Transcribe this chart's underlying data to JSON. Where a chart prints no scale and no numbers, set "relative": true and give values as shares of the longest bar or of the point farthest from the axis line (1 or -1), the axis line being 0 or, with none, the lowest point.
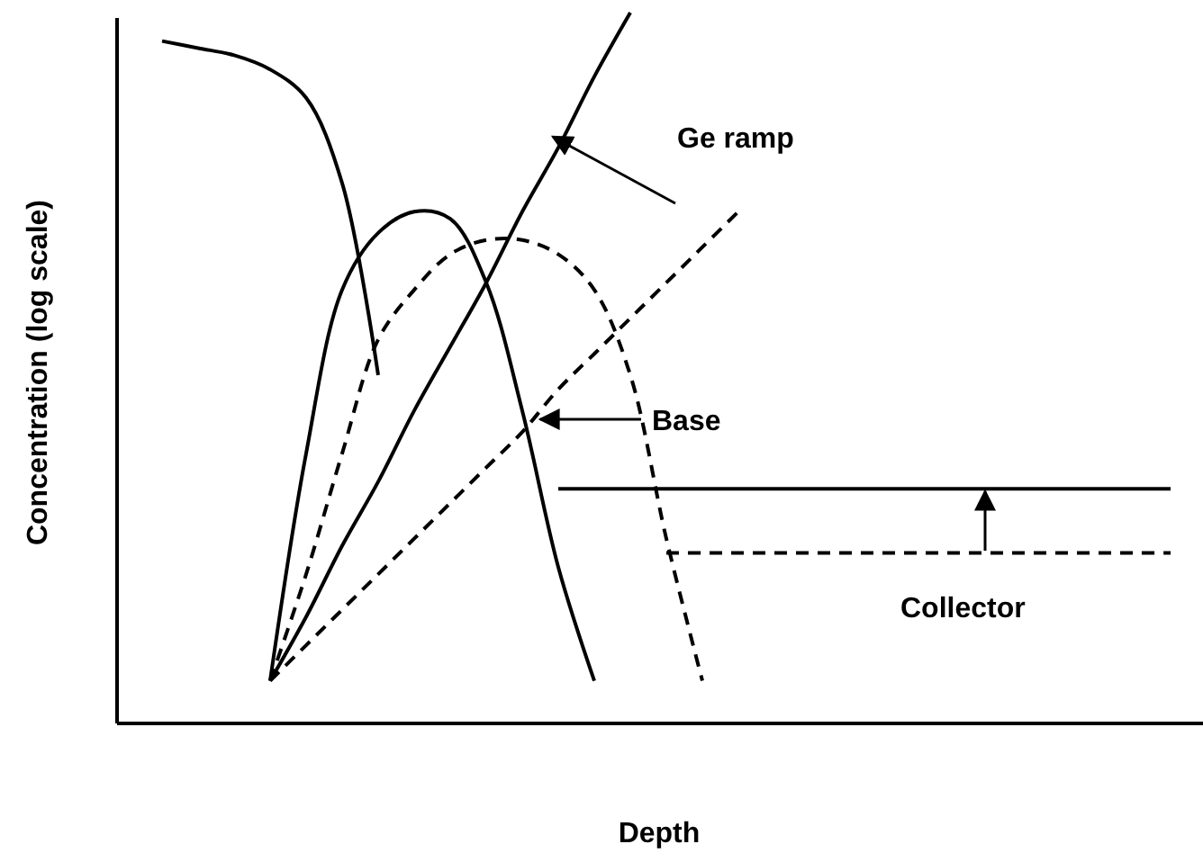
{
  "chart_data": {
    "type": "line",
    "relative": true,
    "xlabel": "Depth",
    "ylabel": "Concentration (log scale)",
    "marker": "none",
    "categories": [
      null,
      null,
      null,
      null,
      null,
      null,
      null,
      null,
      null,
      null,
      null,
      null,
      null,
      null,
      null,
      null,
      null,
      null,
      null,
      null,
      null,
      null,
      null,
      null,
      null,
      null,
      null,
      null,
      null
    ],
    "series": [
      {
        "color": "#000000",
        "line_style": "solid",
        "values": [
          0.96,
          0.95,
          0.94,
          0.92,
          0.88,
          0.76,
          0.49,
          null,
          null,
          null,
          null,
          null,
          null,
          null,
          null,
          null,
          null,
          null,
          null,
          null,
          null,
          null,
          null,
          null,
          null,
          null,
          null,
          null,
          null
        ]
      },
      {
        "color": "#000000",
        "line_style": "solid",
        "values": [
          null,
          null,
          null,
          0.06,
          0.38,
          0.61,
          0.69,
          0.72,
          0.71,
          0.62,
          0.44,
          0.22,
          0.06,
          null,
          null,
          null,
          null,
          null,
          null,
          null,
          null,
          null,
          null,
          null,
          null,
          null,
          null,
          null,
          null
        ]
      },
      {
        "color": "#000000",
        "line_style": "dashed",
        "values": [
          null,
          null,
          null,
          0.06,
          0.21,
          0.38,
          0.54,
          0.61,
          0.66,
          0.68,
          0.68,
          0.66,
          0.61,
          0.49,
          0.26,
          0.06,
          null,
          null,
          null,
          null,
          null,
          null,
          null,
          null,
          null,
          null,
          null,
          null,
          null
        ]
      },
      {
        "color": "#000000",
        "line_style": "solid",
        "values": [
          null,
          null,
          null,
          0.06,
          0.15,
          0.25,
          0.34,
          0.44,
          0.53,
          0.62,
          0.72,
          0.81,
          0.91,
          1.0,
          null,
          null,
          null,
          null,
          null,
          null,
          null,
          null,
          null,
          null,
          null,
          null,
          null,
          null,
          null
        ]
      },
      {
        "color": "#000000",
        "line_style": "dashed",
        "values": [
          null,
          null,
          null,
          0.06,
          0.11,
          0.16,
          0.21,
          0.26,
          0.31,
          0.36,
          0.41,
          0.47,
          0.52,
          0.57,
          0.62,
          0.67,
          0.72,
          null,
          null,
          null,
          null,
          null,
          null,
          null,
          null,
          null,
          null,
          null,
          null
        ]
      },
      {
        "color": "#000000",
        "line_style": "solid",
        "values": [
          null,
          null,
          null,
          null,
          null,
          null,
          null,
          null,
          null,
          null,
          null,
          0.33,
          0.33,
          0.33,
          0.33,
          0.33,
          0.33,
          0.33,
          0.33,
          0.33,
          0.33,
          0.33,
          0.33,
          0.33,
          0.33,
          0.33,
          0.33,
          0.33,
          0.33
        ]
      },
      {
        "color": "#000000",
        "line_style": "dashed",
        "values": [
          null,
          null,
          null,
          null,
          null,
          null,
          null,
          null,
          null,
          null,
          null,
          null,
          null,
          null,
          0.24,
          0.24,
          0.24,
          0.24,
          0.24,
          0.24,
          0.24,
          0.24,
          0.24,
          0.24,
          0.24,
          0.24,
          0.24,
          0.24,
          0.24
        ]
      }
    ],
    "annotations": [
      "Ge ramp",
      "Base",
      "Collector"
    ]
  }
}
